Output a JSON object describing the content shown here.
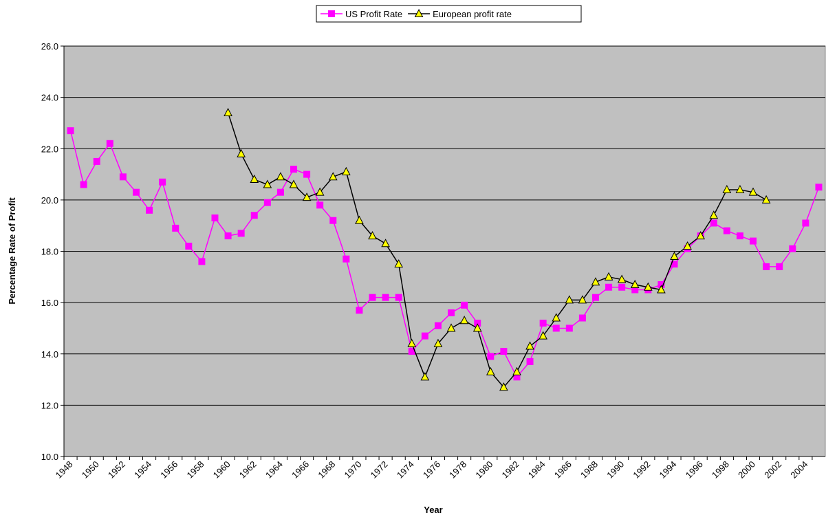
{
  "chart_data": {
    "type": "line",
    "x_label": "Year",
    "y_label": "Percentage Rate of Profit",
    "categories": [
      "1948",
      null,
      "1950",
      null,
      "1952",
      null,
      "1954",
      null,
      "1956",
      null,
      "1958",
      null,
      "1960",
      null,
      "1962",
      null,
      "1964",
      null,
      "1966",
      null,
      "1968",
      null,
      "1970",
      null,
      "1972",
      null,
      "1974",
      null,
      "1976",
      null,
      "1978",
      null,
      "1980",
      null,
      "1982",
      null,
      "1984",
      null,
      "1986",
      null,
      "1988",
      null,
      "1990",
      null,
      "1992",
      null,
      "1994",
      null,
      "1996",
      null,
      "1998",
      null,
      "2000",
      null,
      "2002",
      null,
      "2004",
      null
    ],
    "series": [
      {
        "name": "US Profit Rate",
        "color": "#ff00ff",
        "marker": "square",
        "values": [
          22.7,
          20.6,
          21.5,
          22.2,
          20.9,
          20.3,
          19.6,
          20.7,
          18.9,
          18.2,
          17.6,
          19.3,
          18.6,
          18.7,
          19.4,
          19.9,
          20.3,
          21.2,
          21.0,
          19.8,
          19.2,
          17.7,
          15.7,
          16.2,
          16.2,
          16.2,
          14.1,
          14.7,
          15.1,
          15.6,
          15.9,
          15.2,
          13.9,
          14.1,
          13.1,
          13.7,
          15.2,
          15.0,
          15.0,
          15.4,
          16.2,
          16.6,
          16.6,
          16.5,
          16.5,
          16.7,
          17.5,
          18.1,
          18.6,
          19.1,
          18.8,
          18.6,
          18.4,
          17.4,
          17.4,
          18.1,
          19.1,
          20.5
        ]
      },
      {
        "name": "European profit rate",
        "color": "#000000",
        "marker": "triangle",
        "values": [
          null,
          null,
          null,
          null,
          null,
          null,
          null,
          null,
          null,
          null,
          null,
          null,
          23.4,
          21.8,
          20.8,
          20.6,
          20.9,
          20.6,
          20.1,
          20.3,
          20.9,
          21.1,
          19.2,
          18.6,
          18.3,
          17.5,
          14.4,
          13.1,
          14.4,
          15.0,
          15.3,
          15.0,
          13.3,
          12.7,
          13.3,
          14.3,
          14.7,
          15.4,
          16.1,
          16.1,
          16.8,
          17.0,
          16.9,
          16.7,
          16.6,
          16.5,
          17.8,
          18.2,
          18.6,
          19.4,
          20.4,
          20.4,
          20.3,
          20.0,
          null,
          null,
          null,
          null
        ]
      }
    ],
    "ylim": [
      10,
      26
    ],
    "yticks": [
      {
        "value": 10,
        "label": "10.0"
      },
      {
        "value": 12,
        "label": "12.0"
      },
      {
        "value": 14,
        "label": "14.0"
      },
      {
        "value": 16,
        "label": "16.0"
      },
      {
        "value": 18,
        "label": "18.0"
      },
      {
        "value": 20,
        "label": "20.0"
      },
      {
        "value": 22,
        "label": "22.0"
      },
      {
        "value": 24,
        "label": "24.0"
      },
      {
        "value": 26,
        "label": "26.0"
      }
    ],
    "grid": true,
    "legend": "top",
    "plot_background": "#c0c0c0"
  }
}
